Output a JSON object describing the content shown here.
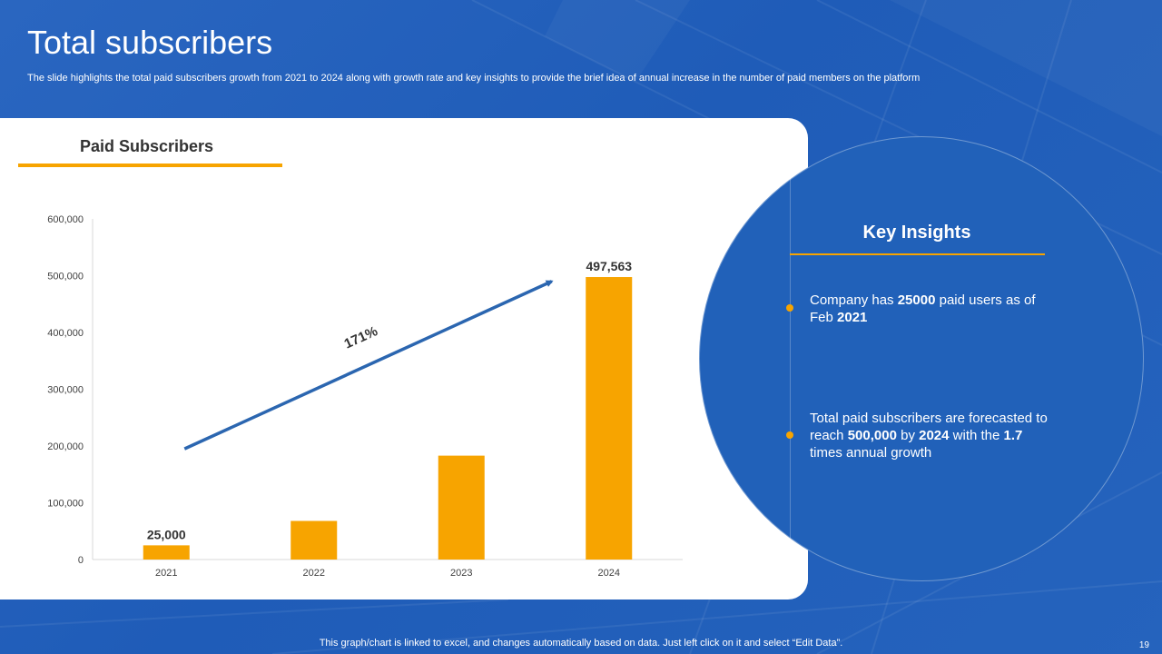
{
  "slide": {
    "title": "Total subscribers",
    "subtitle": "The slide highlights the total paid subscribers growth from 2021 to 2024 along with growth rate and key insights to  provide the brief idea of annual increase in the number of  paid members on the platform",
    "footer_note": "This graph/chart is linked to excel,  and changes automatically based on data. Just left click on it and select “Edit Data”.",
    "page_number": "19"
  },
  "colors": {
    "accent": "#f7a400",
    "primary_blue": "#2161b9",
    "arrow_blue": "#2b66b0"
  },
  "card": {
    "heading": "Paid Subscribers"
  },
  "chart_data": {
    "type": "bar",
    "title": "Paid Subscribers",
    "categories": [
      "2021",
      "2022",
      "2023",
      "2024"
    ],
    "values": [
      25000,
      68000,
      183000,
      497563
    ],
    "ylim": [
      0,
      600000
    ],
    "yticks": [
      0,
      100000,
      200000,
      300000,
      400000,
      500000,
      600000
    ],
    "ytick_labels": [
      "0",
      "100,000",
      "200,000",
      "300,000",
      "400,000",
      "500,000",
      "600,000"
    ],
    "data_labels": {
      "2021": "25,000",
      "2024": "497,563"
    },
    "grid": false,
    "annotation": {
      "text": "171%",
      "from_value": 195000,
      "to_value": 490000
    }
  },
  "insights": {
    "title": "Key Insights",
    "bullets": [
      {
        "parts": [
          {
            "text": "Company has ",
            "bold": false
          },
          {
            "text": "25000",
            "bold": true
          },
          {
            "text": " paid users as of Feb ",
            "bold": false
          },
          {
            "text": "2021",
            "bold": true
          }
        ]
      },
      {
        "parts": [
          {
            "text": "Total paid subscribers are forecasted to reach ",
            "bold": false
          },
          {
            "text": "500,000",
            "bold": true
          },
          {
            "text": " by ",
            "bold": false
          },
          {
            "text": "2024",
            "bold": true
          },
          {
            "text": " with the ",
            "bold": false
          },
          {
            "text": "1.7",
            "bold": true
          },
          {
            "text": " times annual growth",
            "bold": false
          }
        ]
      }
    ]
  }
}
